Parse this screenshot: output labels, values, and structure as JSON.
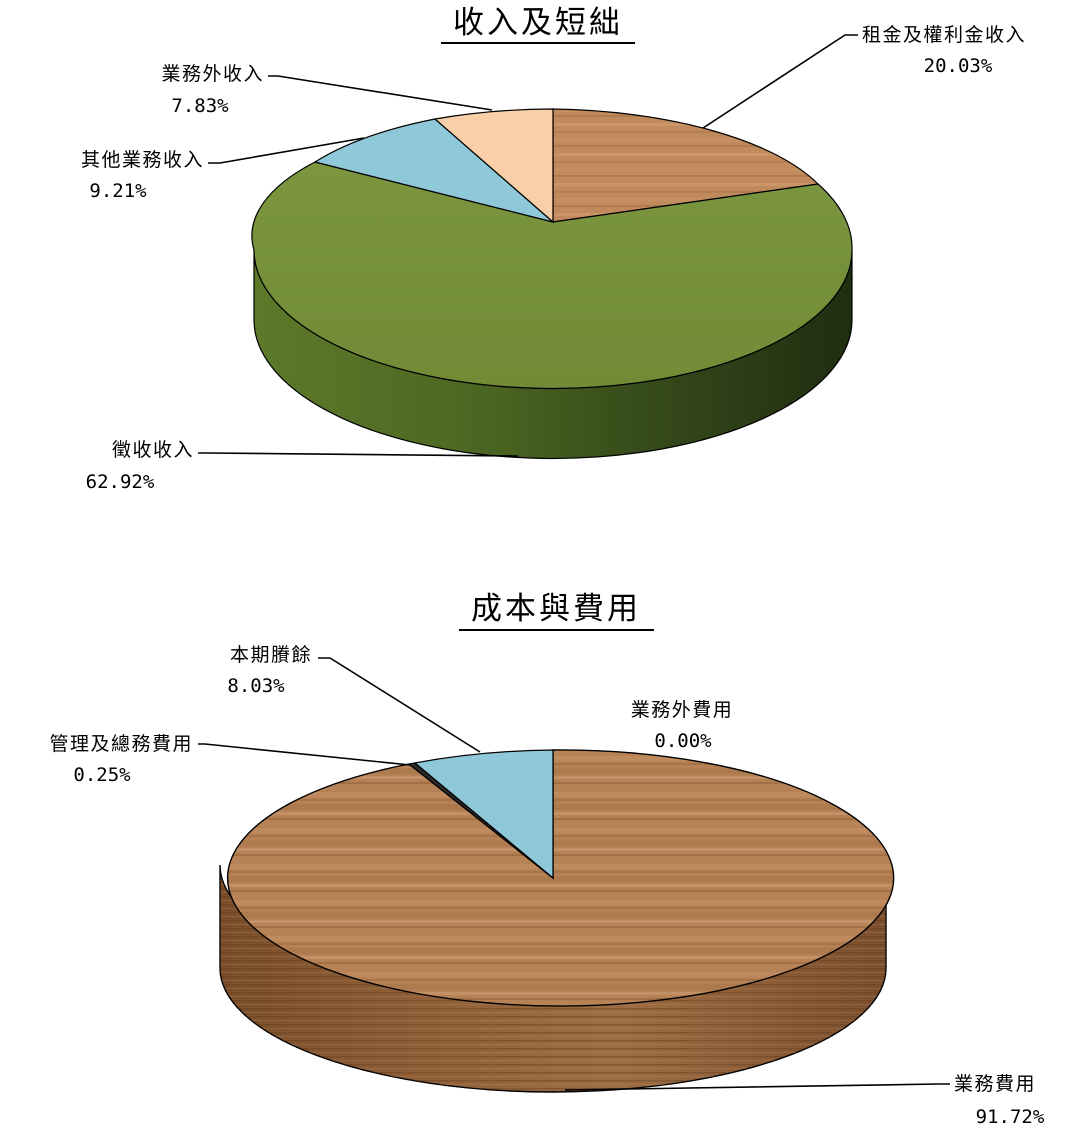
{
  "chart_data": [
    {
      "type": "pie",
      "title": "收入及短絀",
      "slices": [
        {
          "label": "租金及權利金收入",
          "percent_text": "20.03%",
          "value": 20.03,
          "color": "#C68A5C"
        },
        {
          "label": "徵收收入",
          "percent_text": "62.92%",
          "value": 62.92,
          "color": "#77923B"
        },
        {
          "label": "其他業務收入",
          "percent_text": "9.21%",
          "value": 9.21,
          "color": "#8FC8D8"
        },
        {
          "label": "業務外收入",
          "percent_text": "7.83%",
          "value": 7.83,
          "color": "#F8CFA8"
        }
      ]
    },
    {
      "type": "pie",
      "title": "成本與費用",
      "slices": [
        {
          "label": "業務外費用",
          "percent_text": "0.00%",
          "value": 0.0,
          "color": "#B07C4F"
        },
        {
          "label": "業務費用",
          "percent_text": "91.72%",
          "value": 91.72,
          "color": "#B07C4F"
        },
        {
          "label": "管理及總務費用",
          "percent_text": "0.25%",
          "value": 0.25,
          "color": "#3A3A3A"
        },
        {
          "label": "本期賸餘",
          "percent_text": "8.03%",
          "value": 8.03,
          "color": "#8FC8D8"
        }
      ]
    }
  ]
}
